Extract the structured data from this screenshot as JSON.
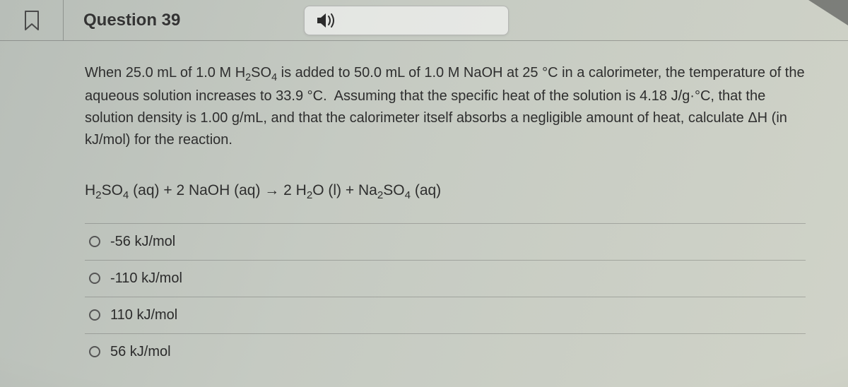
{
  "header": {
    "title": "Question 39"
  },
  "prompt_html": "When 25.0 mL of 1.0 M H<sub>2</sub>SO<sub>4</sub> is added to 50.0 mL of 1.0 M NaOH at 25 °C in a calorimeter, the temperature of the aqueous solution increases to 33.9 °C.&nbsp; Assuming that the specific heat of the solution is 4.18 J/g·°C, that the solution density is 1.00 g/mL, and that the calorimeter itself absorbs a negligible amount of heat, calculate ΔH (in kJ/mol) for the reaction.",
  "equation_html": "H<sub>2</sub>SO<sub>4</sub> (aq) + 2 NaOH (aq) → 2 H<sub>2</sub>O (l) + Na<sub>2</sub>SO<sub>4</sub> (aq)",
  "options": [
    {
      "label": "-56 kJ/mol"
    },
    {
      "label": "-110 kJ/mol"
    },
    {
      "label": "110 kJ/mol"
    },
    {
      "label": "56 kJ/mol"
    }
  ],
  "colors": {
    "text": "#2e2e2e",
    "divider": "rgba(70,70,70,0.30)",
    "radio_border": "#555555"
  }
}
